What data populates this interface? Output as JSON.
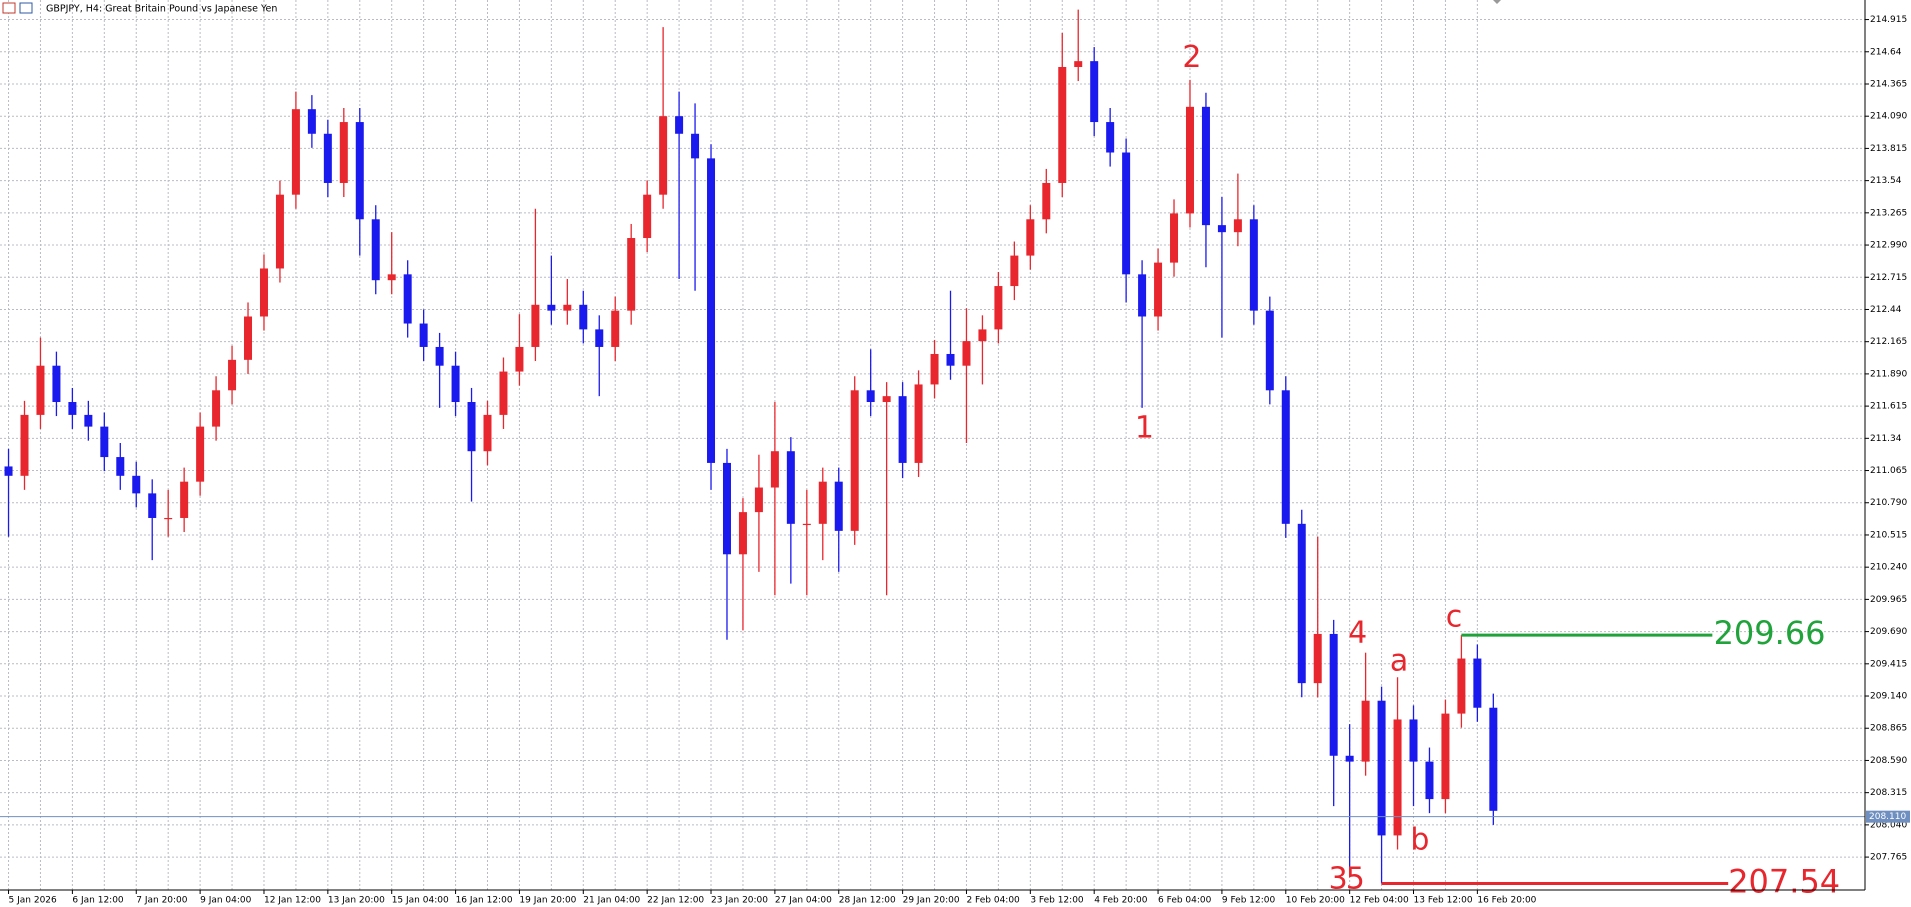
{
  "chart_data": {
    "type": "candlestick",
    "title": "GBPJPY, H4:  Great Britain Pound vs Japanese Yen",
    "up_color": "#e8262d",
    "down_color": "#1a1aef",
    "grid": true,
    "ylim": [
      207.484,
      215.082
    ],
    "yticks": [
      214.915,
      214.64,
      214.365,
      {
        "value": 214.09,
        "label": "214.090"
      },
      213.815,
      213.54,
      213.265,
      {
        "value": 212.99,
        "label": "212.990"
      },
      212.715,
      212.44,
      212.165,
      {
        "value": 211.89,
        "label": "211.890"
      },
      211.615,
      211.34,
      211.065,
      {
        "value": 210.79,
        "label": "210.790"
      },
      210.515,
      {
        "value": 210.24,
        "label": "210.240"
      },
      209.965,
      {
        "value": 209.69,
        "label": "209.690"
      },
      209.415,
      {
        "value": 209.14,
        "label": "209.140"
      },
      208.865,
      {
        "value": 208.59,
        "label": "208.590"
      },
      208.315,
      {
        "value": 208.04,
        "label": "208.040"
      },
      207.765
    ],
    "categories": [
      "5 Jan 2026",
      null,
      null,
      null,
      "6 Jan 12:00",
      null,
      null,
      null,
      "7 Jan 20:00",
      null,
      null,
      null,
      "9 Jan 04:00",
      null,
      null,
      null,
      "12 Jan 12:00",
      null,
      null,
      null,
      "13 Jan 20:00",
      null,
      null,
      null,
      "15 Jan 04:00",
      null,
      null,
      null,
      "16 Jan 12:00",
      null,
      null,
      null,
      "19 Jan 20:00",
      null,
      null,
      null,
      "21 Jan 04:00",
      null,
      null,
      null,
      "22 Jan 12:00",
      null,
      null,
      null,
      "23 Jan 20:00",
      null,
      null,
      null,
      "27 Jan 04:00",
      null,
      null,
      null,
      "28 Jan 12:00",
      null,
      null,
      null,
      "29 Jan 20:00",
      null,
      null,
      null,
      "2 Feb 04:00",
      null,
      null,
      null,
      "3 Feb 12:00",
      null,
      null,
      null,
      "4 Feb 20:00",
      null,
      null,
      null,
      "6 Feb 04:00",
      null,
      null,
      null,
      "9 Feb 12:00",
      null,
      null,
      null,
      "10 Feb 20:00",
      null,
      null,
      null,
      "12 Feb 04:00",
      null,
      null,
      null,
      "13 Feb 12:00",
      null,
      null,
      null,
      "16 Feb 20:00",
      null
    ],
    "open": [
      211.1,
      211.02,
      211.54,
      211.96,
      211.65,
      211.54,
      211.44,
      211.18,
      211.02,
      210.87,
      210.66,
      210.66,
      210.97,
      211.44,
      211.75,
      212.01,
      212.38,
      212.79,
      213.42,
      214.15,
      213.94,
      213.52,
      214.04,
      213.21,
      212.69,
      212.74,
      212.32,
      212.12,
      211.96,
      211.65,
      211.23,
      211.54,
      211.91,
      212.12,
      212.48,
      212.43,
      212.48,
      212.27,
      212.12,
      212.43,
      213.05,
      213.42,
      214.09,
      213.94,
      213.73,
      211.13,
      210.35,
      210.71,
      210.92,
      211.23,
      210.61,
      210.61,
      210.97,
      210.55,
      211.75,
      211.65,
      211.7,
      211.13,
      211.8,
      212.06,
      211.96,
      212.17,
      212.27,
      212.64,
      212.9,
      213.21,
      213.52,
      214.51,
      214.56,
      214.04,
      213.78,
      212.74,
      212.38,
      212.84,
      213.26,
      214.17,
      213.16,
      213.1,
      213.21,
      212.43,
      211.75,
      210.61,
      209.25,
      209.67,
      208.63,
      208.58,
      209.1,
      207.95,
      208.94,
      208.58,
      208.26,
      208.99,
      209.46,
      209.04
    ],
    "high": [
      211.25,
      211.66,
      212.2,
      212.08,
      211.77,
      211.66,
      211.56,
      211.3,
      211.14,
      210.99,
      210.9,
      211.09,
      211.56,
      211.87,
      212.13,
      212.5,
      212.91,
      213.54,
      214.3,
      214.27,
      214.06,
      214.16,
      214.16,
      213.33,
      213.1,
      212.86,
      212.44,
      212.24,
      212.08,
      211.77,
      211.66,
      212.03,
      212.4,
      213.3,
      212.9,
      212.7,
      212.6,
      212.39,
      212.55,
      213.17,
      213.54,
      214.85,
      214.3,
      214.2,
      213.85,
      211.25,
      210.83,
      211.2,
      211.65,
      211.35,
      210.9,
      211.09,
      211.09,
      211.87,
      212.1,
      211.82,
      211.82,
      211.92,
      212.18,
      212.6,
      212.45,
      212.39,
      212.76,
      213.02,
      213.33,
      213.64,
      214.8,
      215.0,
      214.68,
      214.16,
      213.9,
      212.86,
      212.96,
      213.38,
      214.4,
      214.29,
      213.4,
      213.6,
      213.33,
      212.55,
      211.87,
      210.73,
      210.5,
      209.79,
      208.9,
      209.51,
      209.22,
      209.3,
      209.06,
      208.7,
      209.11,
      209.66,
      209.58,
      209.16
    ],
    "low": [
      210.5,
      210.9,
      211.42,
      211.53,
      211.42,
      211.32,
      211.06,
      210.9,
      210.75,
      210.3,
      210.5,
      210.54,
      210.85,
      211.32,
      211.63,
      211.89,
      212.26,
      212.67,
      213.3,
      213.82,
      213.4,
      213.4,
      212.9,
      212.57,
      212.57,
      212.2,
      212.0,
      211.6,
      211.53,
      210.8,
      211.11,
      211.42,
      211.79,
      212.0,
      212.31,
      212.31,
      212.15,
      211.7,
      212.0,
      212.31,
      212.93,
      213.3,
      212.7,
      212.6,
      210.9,
      209.62,
      209.7,
      210.2,
      210.0,
      210.1,
      210.0,
      210.3,
      210.2,
      210.43,
      211.53,
      210.0,
      211.0,
      211.01,
      211.68,
      211.84,
      211.3,
      211.8,
      212.15,
      212.52,
      212.78,
      213.09,
      213.4,
      214.39,
      213.92,
      213.66,
      212.5,
      211.6,
      212.26,
      212.72,
      213.14,
      212.8,
      212.2,
      212.98,
      212.31,
      211.63,
      210.49,
      209.13,
      209.13,
      208.2,
      207.6,
      208.46,
      207.54,
      207.83,
      208.2,
      208.14,
      208.14,
      208.87,
      208.92,
      208.04
    ],
    "close": [
      211.02,
      211.54,
      211.96,
      211.65,
      211.54,
      211.44,
      211.18,
      211.02,
      210.87,
      210.66,
      210.66,
      210.97,
      211.44,
      211.75,
      212.01,
      212.38,
      212.79,
      213.42,
      214.15,
      213.94,
      213.52,
      214.04,
      213.21,
      212.69,
      212.74,
      212.32,
      212.12,
      211.96,
      211.65,
      211.23,
      211.54,
      211.91,
      212.12,
      212.48,
      212.43,
      212.48,
      212.27,
      212.12,
      212.43,
      213.05,
      213.42,
      214.09,
      213.94,
      213.73,
      211.13,
      210.35,
      210.71,
      210.92,
      211.23,
      210.61,
      210.61,
      210.97,
      210.55,
      211.75,
      211.65,
      211.7,
      211.13,
      211.8,
      212.06,
      211.96,
      212.17,
      212.27,
      212.64,
      212.9,
      213.21,
      213.52,
      214.51,
      214.56,
      214.04,
      213.78,
      212.74,
      212.38,
      212.84,
      213.26,
      214.17,
      213.16,
      213.1,
      213.21,
      212.43,
      211.75,
      210.61,
      209.25,
      209.67,
      208.63,
      208.58,
      209.1,
      207.95,
      208.94,
      208.58,
      208.26,
      208.99,
      209.46,
      209.04,
      208.16
    ],
    "last_price": {
      "value": 208.11,
      "label": "208.110",
      "color": "#6f8fc0"
    },
    "levels": [
      {
        "value": 209.66,
        "color": "#1fa33a"
      },
      {
        "value": 207.54,
        "color": "#e8262d"
      }
    ],
    "wave_labels": [
      "1",
      "2",
      "3",
      "5",
      "4",
      "a",
      "b",
      "c"
    ]
  }
}
